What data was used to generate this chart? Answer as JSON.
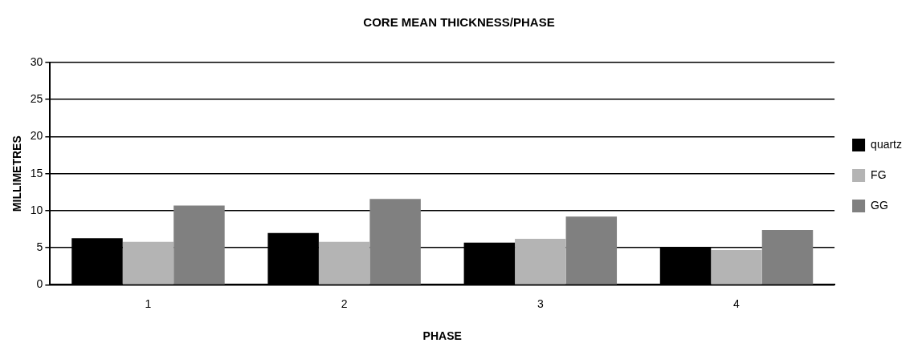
{
  "chart_data": {
    "type": "bar",
    "title": "CORE MEAN THICKNESS/PHASE",
    "xlabel": "PHASE",
    "ylabel": "MILLIMETRES",
    "categories": [
      "1",
      "2",
      "3",
      "4"
    ],
    "series": [
      {
        "name": "quartz",
        "color": "#000000",
        "values": [
          6.3,
          7.0,
          5.7,
          5.1
        ]
      },
      {
        "name": "FG",
        "color": "#b4b4b4",
        "values": [
          5.8,
          5.8,
          6.2,
          4.7
        ]
      },
      {
        "name": "GG",
        "color": "#808080",
        "values": [
          10.7,
          11.6,
          9.2,
          7.4
        ]
      }
    ],
    "ylim": [
      0,
      30
    ],
    "yticks": [
      0,
      5,
      10,
      15,
      20,
      25,
      30
    ],
    "grid": "y",
    "legend": "right"
  }
}
